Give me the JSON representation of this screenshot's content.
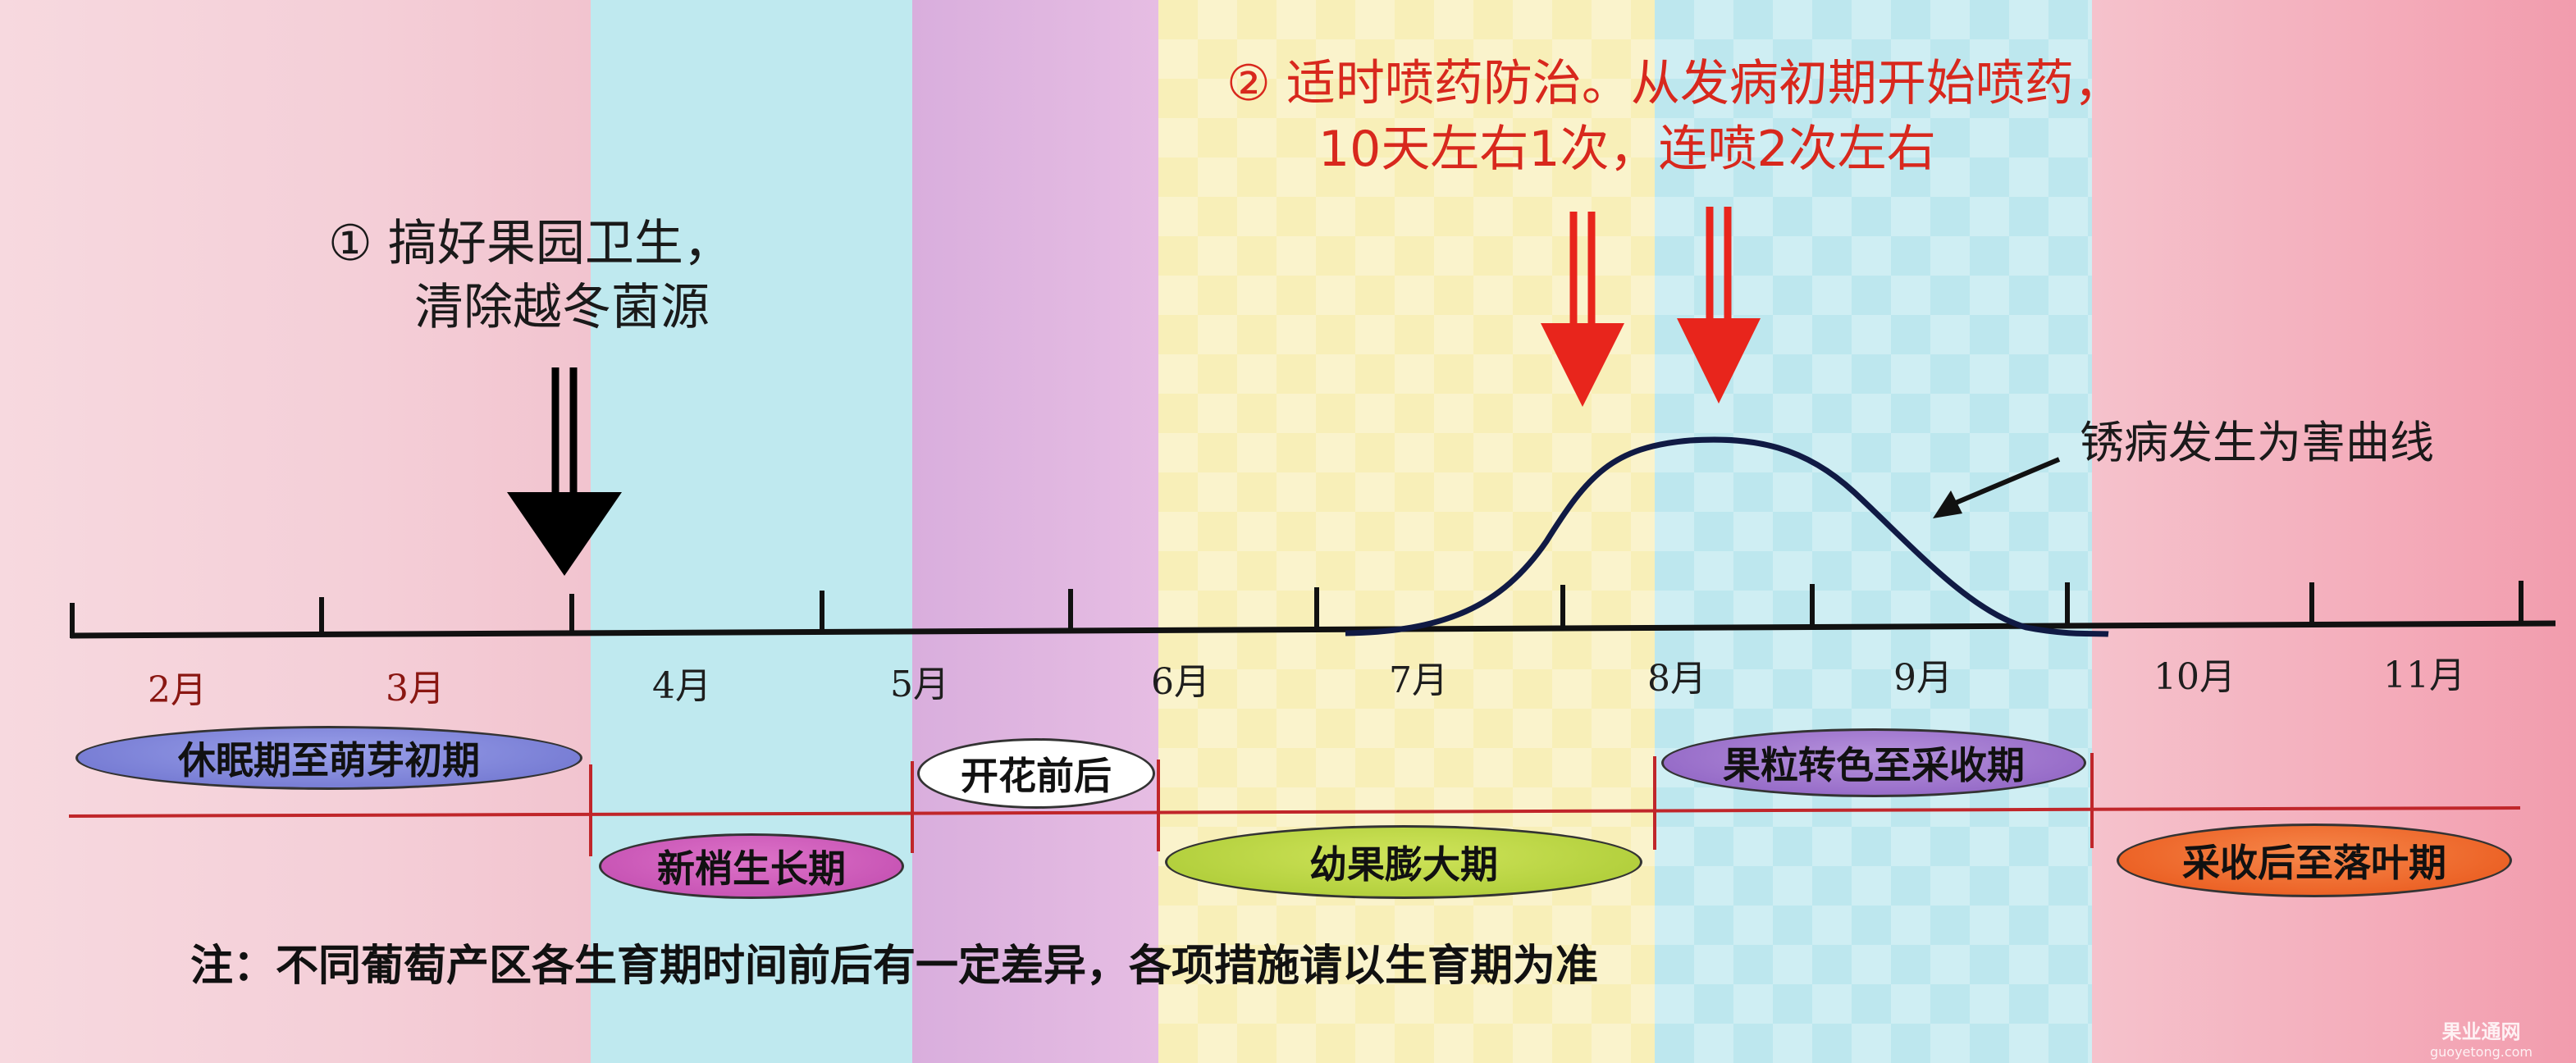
{
  "background_bands": [
    {
      "name": "pink",
      "color": "#f6d3dc"
    },
    {
      "name": "cyan",
      "color": "#bde9ee"
    },
    {
      "name": "violet",
      "color": "#e2b6de"
    },
    {
      "name": "yellow",
      "color": "#f8efb6"
    },
    {
      "name": "aqua",
      "color": "#b8e8ec"
    },
    {
      "name": "rose",
      "color": "#f3b6c2"
    }
  ],
  "notes": {
    "sanitation": {
      "line1": "① 搞好果园卫生，",
      "line2": "清除越冬菌源",
      "arrow_color": "#000000"
    },
    "spray": {
      "line1": "② 适时喷药防治。从发病初期开始喷药，",
      "line2": "10天左右1次，连喷2次左右",
      "arrow_color": "#e8251c"
    }
  },
  "curve_label": "锈病发生为害曲线",
  "months": [
    "2月",
    "3月",
    "4月",
    "5月",
    "6月",
    "7月",
    "8月",
    "9月",
    "10月",
    "11月"
  ],
  "stages": {
    "dormancy": "休眠期至萌芽初期",
    "flowering": "开花前后",
    "berry_color": "果粒转色至采收期",
    "shoot_growth": "新梢生长期",
    "fruit_expansion": "幼果膨大期",
    "post_harvest": "采收后至落叶期"
  },
  "stage_colors": {
    "dormancy": "#7b80d6",
    "flowering": "#ffffff",
    "berry_color": "#9a6fc8",
    "shoot_growth": "#c84fb4",
    "fruit_expansion": "#b4d23c",
    "post_harvest": "#f0621f"
  },
  "footnote": "注：不同葡萄产区各生育期时间前后有一定差异，各项措施请以生育期为准",
  "watermark": {
    "line1": "果业通网",
    "line2": "guoyetong.com"
  }
}
